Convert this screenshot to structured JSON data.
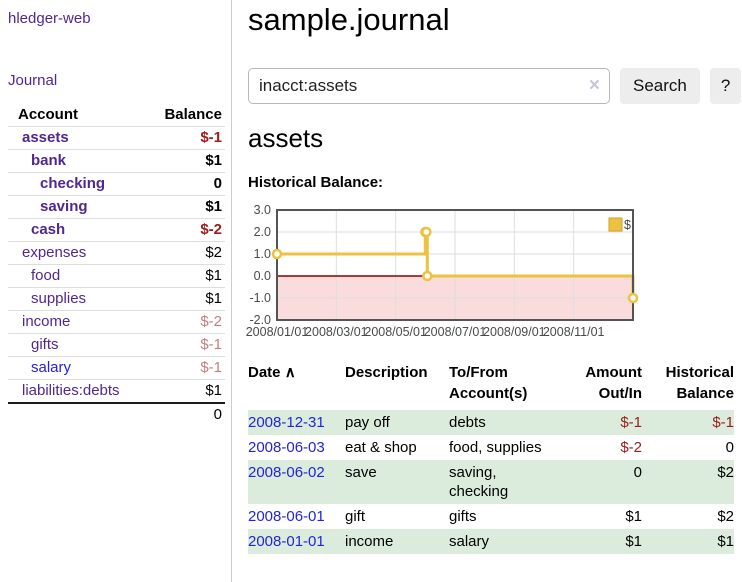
{
  "sidebar": {
    "brand": "hledger-web",
    "nav": {
      "journal": "Journal"
    },
    "accounts_table": {
      "headers": [
        "Account",
        "Balance"
      ],
      "rows": [
        {
          "name": "assets",
          "depth": 1,
          "bold": true,
          "balance": "$-1",
          "balance_tone": "neg-strong",
          "link_tone": "purple"
        },
        {
          "name": "bank",
          "depth": 2,
          "bold": true,
          "balance": "$1",
          "balance_tone": "plain",
          "link_tone": "purple"
        },
        {
          "name": "checking",
          "depth": 3,
          "bold": true,
          "balance": "0",
          "balance_tone": "plain",
          "link_tone": "purple"
        },
        {
          "name": "saving",
          "depth": 3,
          "bold": true,
          "balance": "$1",
          "balance_tone": "plain",
          "link_tone": "purple"
        },
        {
          "name": "cash",
          "depth": 2,
          "bold": true,
          "balance": "$-2",
          "balance_tone": "neg-strong",
          "link_tone": "purple"
        },
        {
          "name": "expenses",
          "depth": 1,
          "bold": false,
          "balance": "$2",
          "balance_tone": "plain",
          "link_tone": "purple"
        },
        {
          "name": "food",
          "depth": 2,
          "bold": false,
          "balance": "$1",
          "balance_tone": "plain",
          "link_tone": "purple"
        },
        {
          "name": "supplies",
          "depth": 2,
          "bold": false,
          "balance": "$1",
          "balance_tone": "plain",
          "link_tone": "purple"
        },
        {
          "name": "income",
          "depth": 1,
          "bold": false,
          "balance": "$-2",
          "balance_tone": "neg-muted",
          "link_tone": "purple"
        },
        {
          "name": "gifts",
          "depth": 2,
          "bold": false,
          "balance": "$-1",
          "balance_tone": "neg-muted",
          "link_tone": "purple"
        },
        {
          "name": "salary",
          "depth": 2,
          "bold": false,
          "balance": "$-1",
          "balance_tone": "neg-muted",
          "link_tone": "blue"
        },
        {
          "name": "liabilities:debts",
          "depth": 1,
          "bold": false,
          "balance": "$1",
          "balance_tone": "plain",
          "link_tone": "purple",
          "last": true
        }
      ],
      "total": "0"
    }
  },
  "main": {
    "title": "sample.journal",
    "search": {
      "value": "inacct:assets",
      "button_label": "Search",
      "help_label": "?"
    },
    "account_heading": "assets",
    "section_heading": "Historical Balance:"
  },
  "icons": {
    "clear": "×",
    "sort_ascending": "∧"
  },
  "colors": {
    "accent_purple": "#51278f",
    "link_blue": "#2323dd",
    "negative_strong": "#9c1b1b",
    "negative_muted": "#c47e7e",
    "row_shade_green": "#dcecdc",
    "series_gold": "#edc240",
    "series_gold_border": "#cfa12c",
    "negative_region_pink": "#fbdcdc",
    "zero_line_dark_red": "#8b0000",
    "grid_gray": "#dedede",
    "chart_border_gray": "#545454"
  },
  "chart_data": {
    "type": "line",
    "title": "Historical Balance:",
    "steps": true,
    "series": [
      {
        "name": "$",
        "color": "#edc240",
        "points": [
          [
            "2008-01-01",
            1
          ],
          [
            "2008-06-01",
            2
          ],
          [
            "2008-06-02",
            2
          ],
          [
            "2008-06-03",
            0
          ],
          [
            "2008-12-31",
            -1
          ]
        ]
      }
    ],
    "xlim": [
      "2008-01-01",
      "2008-12-31"
    ],
    "ylim": [
      -2,
      3
    ],
    "yticks": [
      {
        "value": 3,
        "label": "3.0"
      },
      {
        "value": 2,
        "label": "2.0"
      },
      {
        "value": 1,
        "label": "1.0"
      },
      {
        "value": 0,
        "label": "0.0"
      },
      {
        "value": -1,
        "label": "-1.0"
      },
      {
        "value": -2,
        "label": "-2.0"
      }
    ],
    "xticks": [
      {
        "date": "2008-01-01",
        "label": "2008/01/01"
      },
      {
        "date": "2008-03-01",
        "label": "2008/03/01"
      },
      {
        "date": "2008-05-01",
        "label": "2008/05/01"
      },
      {
        "date": "2008-07-01",
        "label": "2008/07/01"
      },
      {
        "date": "2008-09-01",
        "label": "2008/09/01"
      },
      {
        "date": "2008-11-01",
        "label": "2008/11/01"
      }
    ],
    "grid": true,
    "legend": {
      "position": "top-right",
      "label": "$"
    },
    "negative_region_color": "#fbdcdc",
    "zero_line_color": "#8b0000"
  },
  "transactions": {
    "headers": {
      "date": "Date",
      "description": "Description",
      "accounts": "To/From Account(s)",
      "amount": "Amount Out/In",
      "balance": "Historical Balance"
    },
    "rows": [
      {
        "date": "2008-12-31",
        "description": "pay off",
        "accounts": "debts",
        "amount": "$-1",
        "amount_negative": true,
        "balance": "$-1",
        "balance_negative": true,
        "shaded": true
      },
      {
        "date": "2008-06-03",
        "description": "eat & shop",
        "accounts": "food, supplies",
        "amount": "$-2",
        "amount_negative": true,
        "balance": "0",
        "balance_negative": false,
        "shaded": false
      },
      {
        "date": "2008-06-02",
        "description": "save",
        "accounts": "saving, checking",
        "amount": "0",
        "amount_negative": false,
        "balance": "$2",
        "balance_negative": false,
        "shaded": true
      },
      {
        "date": "2008-06-01",
        "description": "gift",
        "accounts": "gifts",
        "amount": "$1",
        "amount_negative": false,
        "balance": "$2",
        "balance_negative": false,
        "shaded": false
      },
      {
        "date": "2008-01-01",
        "description": "income",
        "accounts": "salary",
        "amount": "$1",
        "amount_negative": false,
        "balance": "$1",
        "balance_negative": false,
        "shaded": true
      }
    ]
  }
}
